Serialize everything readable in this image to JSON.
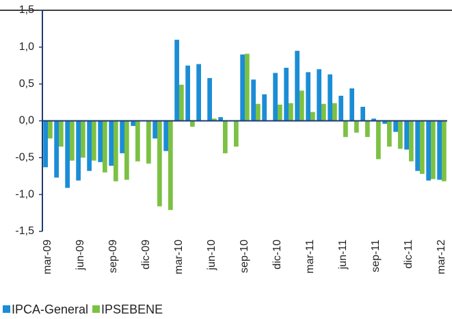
{
  "chart_data": {
    "type": "bar",
    "categories": [
      "mar-09",
      null,
      null,
      "jun-09",
      null,
      null,
      "sep-09",
      null,
      null,
      "dic-09",
      null,
      null,
      "mar-10",
      null,
      null,
      "jun-10",
      null,
      null,
      "sep-10",
      null,
      null,
      "dic-10",
      null,
      null,
      "mar-11",
      null,
      null,
      "jun-11",
      null,
      null,
      "sep-11",
      null,
      null,
      "dic-11",
      null,
      null,
      "mar-12"
    ],
    "series": [
      {
        "name": "IPCA-General",
        "color": "#1b8dd6",
        "values": [
          -0.63,
          -0.77,
          -0.91,
          -0.81,
          -0.68,
          -0.56,
          -0.61,
          -0.44,
          -0.07,
          0.0,
          -0.24,
          -0.41,
          1.1,
          0.75,
          0.77,
          0.58,
          0.05,
          0.0,
          0.9,
          0.56,
          0.36,
          0.65,
          0.72,
          0.95,
          0.66,
          0.7,
          0.63,
          0.34,
          0.44,
          0.19,
          0.03,
          -0.04,
          -0.15,
          -0.39,
          -0.68,
          -0.81,
          -0.8
        ]
      },
      {
        "name": "IPSEBENE",
        "color": "#7cc143",
        "values": [
          -0.24,
          -0.35,
          -0.54,
          -0.5,
          -0.54,
          -0.7,
          -0.82,
          -0.8,
          -0.55,
          -0.58,
          -1.16,
          -1.21,
          0.49,
          -0.08,
          0.0,
          0.03,
          -0.44,
          -0.35,
          0.91,
          0.23,
          0.0,
          0.22,
          0.24,
          0.41,
          0.12,
          0.23,
          0.24,
          -0.22,
          -0.16,
          -0.22,
          -0.52,
          -0.35,
          -0.38,
          -0.55,
          -0.72,
          -0.79,
          -0.82
        ]
      }
    ],
    "ylim": [
      -1.5,
      1.5
    ],
    "yticks": [
      {
        "value": -1.5,
        "label": "-1,5"
      },
      {
        "value": -1,
        "label": "-1,0"
      },
      {
        "value": -0.5,
        "label": "-0,5"
      },
      {
        "value": 0,
        "label": "0,0"
      },
      {
        "value": 0.5,
        "label": "0,5"
      },
      {
        "value": 1,
        "label": "1,0"
      },
      {
        "value": 1.5,
        "label": "1,5"
      }
    ],
    "legend": "bottom-left"
  }
}
